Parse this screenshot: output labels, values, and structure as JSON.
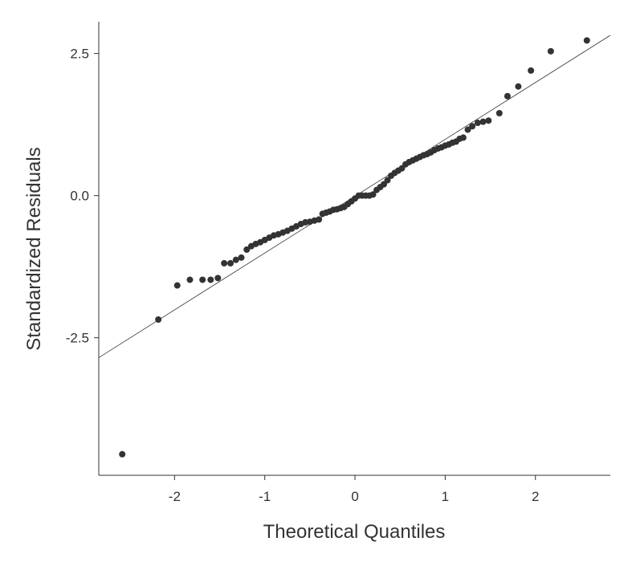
{
  "chart_data": {
    "type": "qq",
    "x_label": "Theoretical Quantiles",
    "y_label": "Standardized Residuals",
    "xlim": [
      -2.84,
      2.83
    ],
    "ylim": [
      -4.92,
      3.06
    ],
    "xticks": [
      -2,
      -1,
      0,
      1,
      2
    ],
    "yticks": [
      -2.5,
      {
        "value": 0,
        "label": "0.0"
      },
      2.5
    ],
    "point_color": "#333333",
    "line_color": "#333333",
    "points": {
      "x": [
        -2.58,
        -2.18,
        -1.97,
        -1.83,
        -1.69,
        -1.6,
        -1.52,
        -1.45,
        -1.38,
        -1.32,
        -1.26,
        -1.2,
        -1.15,
        -1.1,
        -1.05,
        -1.0,
        -0.95,
        -0.9,
        -0.85,
        -0.8,
        -0.75,
        -0.7,
        -0.65,
        -0.6,
        -0.55,
        -0.5,
        -0.45,
        -0.4,
        -0.36,
        -0.32,
        -0.28,
        -0.24,
        -0.2,
        -0.16,
        -0.12,
        -0.08,
        -0.04,
        0.0,
        0.04,
        0.08,
        0.12,
        0.16,
        0.2,
        0.24,
        0.28,
        0.32,
        0.36,
        0.4,
        0.44,
        0.48,
        0.52,
        0.56,
        0.6,
        0.64,
        0.68,
        0.72,
        0.76,
        0.8,
        0.84,
        0.88,
        0.92,
        0.96,
        1.0,
        1.04,
        1.08,
        1.12,
        1.16,
        1.2,
        1.25,
        1.3,
        1.36,
        1.42,
        1.48,
        1.6,
        1.69,
        1.81,
        1.95,
        2.17,
        2.57
      ],
      "values": [
        -4.55,
        -2.18,
        -1.58,
        -1.48,
        -1.48,
        -1.48,
        -1.45,
        -1.19,
        -1.19,
        -1.13,
        -1.09,
        -0.95,
        -0.89,
        -0.85,
        -0.82,
        -0.78,
        -0.74,
        -0.7,
        -0.68,
        -0.65,
        -0.62,
        -0.58,
        -0.54,
        -0.5,
        -0.47,
        -0.46,
        -0.44,
        -0.42,
        -0.32,
        -0.3,
        -0.28,
        -0.25,
        -0.24,
        -0.22,
        -0.2,
        -0.15,
        -0.1,
        -0.05,
        0.0,
        0.0,
        0.0,
        0.0,
        0.02,
        0.1,
        0.15,
        0.2,
        0.27,
        0.35,
        0.4,
        0.44,
        0.48,
        0.55,
        0.59,
        0.62,
        0.65,
        0.68,
        0.71,
        0.73,
        0.76,
        0.8,
        0.83,
        0.85,
        0.88,
        0.9,
        0.93,
        0.95,
        1.0,
        1.02,
        1.16,
        1.22,
        1.28,
        1.3,
        1.32,
        1.45,
        1.75,
        1.92,
        2.2,
        2.54,
        2.73
      ]
    },
    "reference_line": {
      "x": [
        -2.84,
        2.83
      ],
      "values": [
        -2.85,
        2.82
      ]
    }
  }
}
